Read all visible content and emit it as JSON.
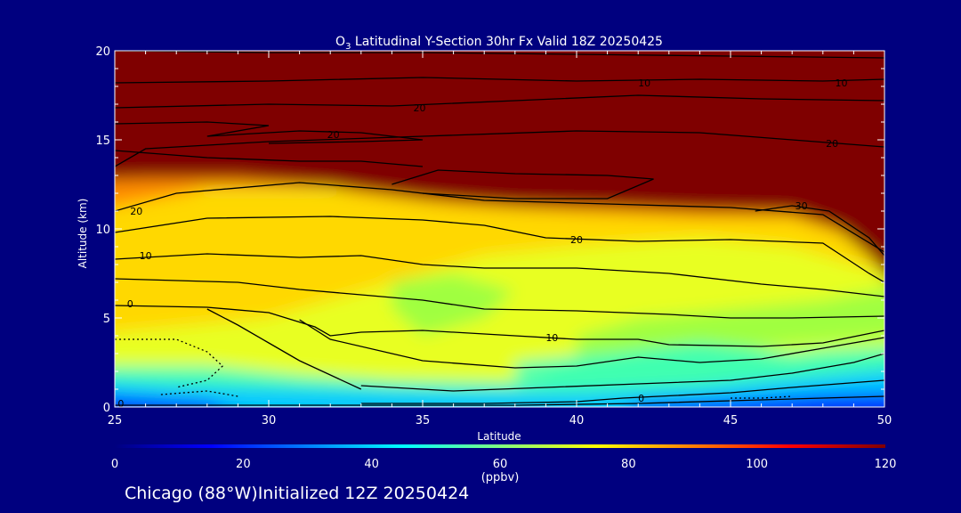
{
  "chart_data": {
    "type": "heatmap",
    "title_prefix": "O",
    "title_sub": "3",
    "title_rest": " Latitudinal Y-Section 30hr  Fx Valid 18Z 20250425",
    "xlabel": "Latitude",
    "ylabel": "Altitude (km)",
    "xlim": [
      25,
      50
    ],
    "ylim": [
      0,
      20
    ],
    "x_ticks": [
      "25",
      "30",
      "35",
      "40",
      "45",
      "50"
    ],
    "y_ticks": [
      "0",
      "5",
      "10",
      "15",
      "20"
    ],
    "colorbar": {
      "label": "(ppbv)",
      "range": [
        0,
        120
      ],
      "ticks": [
        "0",
        "20",
        "40",
        "60",
        "80",
        "100",
        "120"
      ],
      "colors": [
        "#00007f",
        "#0000ff",
        "#0080ff",
        "#00ffff",
        "#80ff80",
        "#ffff00",
        "#ff8000",
        "#ff0000",
        "#7f0000"
      ]
    },
    "field_colors": {
      "top": "#7f0000",
      "upper_band": "#ff8c00",
      "mid_high": "#ffd800",
      "mid": "#e8ff20",
      "mid_low": "#a0ff40",
      "low": "#40ffb0",
      "near_surface": "#00c8ff",
      "surface": "#0030ff"
    },
    "contour_labels": [
      {
        "text": "10",
        "x": 42.2,
        "y": 18.2
      },
      {
        "text": "10",
        "x": 48.6,
        "y": 18.2
      },
      {
        "text": "20",
        "x": 34.9,
        "y": 16.8
      },
      {
        "text": "20",
        "x": 32.1,
        "y": 15.3
      },
      {
        "text": "20",
        "x": 48.3,
        "y": 14.8
      },
      {
        "text": "20",
        "x": 40.0,
        "y": 9.4
      },
      {
        "text": "30",
        "x": 47.3,
        "y": 11.3
      },
      {
        "text": "20",
        "x": 25.7,
        "y": 11.0
      },
      {
        "text": "10",
        "x": 26.0,
        "y": 8.5
      },
      {
        "text": "0",
        "x": 25.5,
        "y": 5.8
      },
      {
        "text": "10",
        "x": 39.2,
        "y": 3.9
      },
      {
        "text": "0",
        "x": 42.1,
        "y": 0.5
      },
      {
        "text": "0",
        "x": 25.2,
        "y": 0.2
      }
    ]
  },
  "footer": "Chicago (88°W)Initialized 12Z 20250424"
}
